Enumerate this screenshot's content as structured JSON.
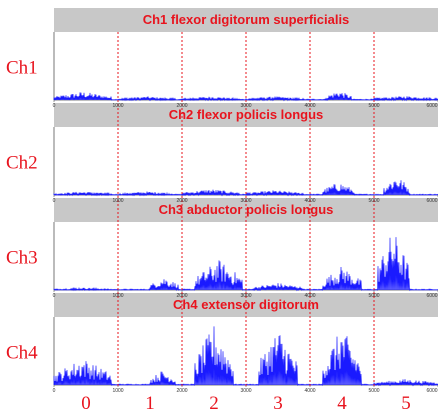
{
  "chart_data": {
    "type": "line",
    "x_ticks": [
      "0",
      "1000",
      "2000",
      "3000",
      "4000",
      "5000",
      "6000"
    ],
    "xlim": [
      0,
      6000
    ],
    "ylim": [
      0,
      1
    ],
    "segment_boundaries": [
      1000,
      2000,
      3000,
      4000,
      5000
    ],
    "segment_labels": [
      "0",
      "1",
      "2",
      "3",
      "4",
      "5"
    ],
    "channels": [
      {
        "label": "Ch1",
        "title": "Ch1 flexor digitorum superficialis",
        "bursts": [
          {
            "start": 0,
            "end": 900,
            "amp": 0.14
          },
          {
            "start": 1000,
            "end": 1900,
            "amp": 0.06
          },
          {
            "start": 2000,
            "end": 2900,
            "amp": 0.06
          },
          {
            "start": 3000,
            "end": 3900,
            "amp": 0.06
          },
          {
            "start": 4250,
            "end": 4650,
            "amp": 0.16
          },
          {
            "start": 5000,
            "end": 6000,
            "amp": 0.07
          }
        ]
      },
      {
        "label": "Ch2",
        "title": "Ch2 flexor policis longus",
        "bursts": [
          {
            "start": 0,
            "end": 900,
            "amp": 0.06
          },
          {
            "start": 1000,
            "end": 1900,
            "amp": 0.06
          },
          {
            "start": 2000,
            "end": 2900,
            "amp": 0.1
          },
          {
            "start": 3000,
            "end": 3900,
            "amp": 0.08
          },
          {
            "start": 4200,
            "end": 4700,
            "amp": 0.22
          },
          {
            "start": 5150,
            "end": 5550,
            "amp": 0.34
          }
        ]
      },
      {
        "label": "Ch3",
        "title": "Ch3 abductor policis longus",
        "bursts": [
          {
            "start": 0,
            "end": 900,
            "amp": 0.04
          },
          {
            "start": 1500,
            "end": 1950,
            "amp": 0.22
          },
          {
            "start": 2200,
            "end": 2950,
            "amp": 0.5
          },
          {
            "start": 3100,
            "end": 3900,
            "amp": 0.12
          },
          {
            "start": 4200,
            "end": 4800,
            "amp": 0.4
          },
          {
            "start": 5050,
            "end": 5550,
            "amp": 1.0
          }
        ]
      },
      {
        "label": "Ch4",
        "title": "Ch4 extensor digitorum",
        "bursts": [
          {
            "start": 0,
            "end": 900,
            "amp": 0.45
          },
          {
            "start": 1500,
            "end": 1900,
            "amp": 0.25
          },
          {
            "start": 2200,
            "end": 2800,
            "amp": 1.0
          },
          {
            "start": 3200,
            "end": 3800,
            "amp": 0.95
          },
          {
            "start": 4200,
            "end": 4800,
            "amp": 0.95
          },
          {
            "start": 5000,
            "end": 6000,
            "amp": 0.1
          }
        ]
      }
    ]
  }
}
